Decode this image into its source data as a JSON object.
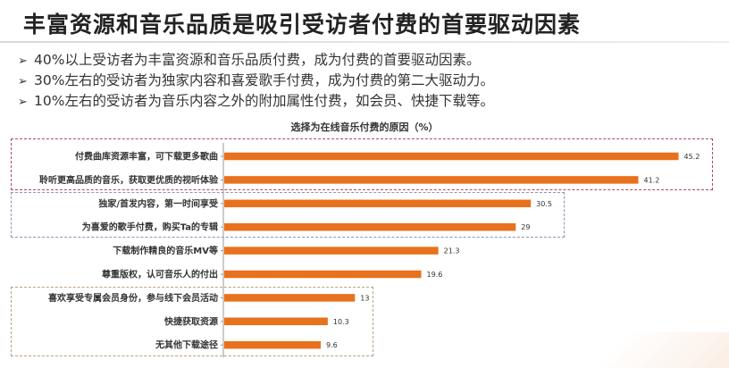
{
  "title": "丰富资源和音乐品质是吸引受访者付费的首要驱动因素",
  "bullets": [
    "40%以上受访者为丰富资源和音乐品质付费，成为付费的首要驱动因素。",
    "30%左右的受访者为独家内容和喜爱歌手付费，成为付费的第二大驱动力。",
    "10%左右的受访者为音乐内容之外的附加属性付费，如会员、快捷下载等。"
  ],
  "bullet_arrow": "➢",
  "colors": {
    "bar": "#e8711d",
    "axis": "#999999",
    "label": "#333333"
  },
  "chart_data": {
    "type": "bar",
    "orientation": "horizontal",
    "title": "选择为在线音乐付费的原因（%）",
    "categories": [
      "付费曲库资源丰富，可下载更多歌曲",
      "聆听更高品质的音乐，获取更优质的视听体验",
      "独家/首发内容，第一时间享受",
      "为喜爱的歌手付费，购买Ta的专辑",
      "下载制作精良的音乐MV等",
      "尊重版权，认可音乐人的付出",
      "喜欢享受专属会员身份，参与线下会员活动",
      "快捷获取资源",
      "无其他下载途径"
    ],
    "values": [
      45.2,
      41.2,
      30.5,
      29,
      21.3,
      19.6,
      13,
      10.3,
      9.6
    ],
    "value_labels": [
      "45.2",
      "41.2",
      "30.5",
      "29",
      "21.3",
      "19.6",
      "13",
      "10.3",
      "9.6"
    ],
    "xlim": [
      0,
      50
    ],
    "grid": false,
    "legend": "none"
  }
}
